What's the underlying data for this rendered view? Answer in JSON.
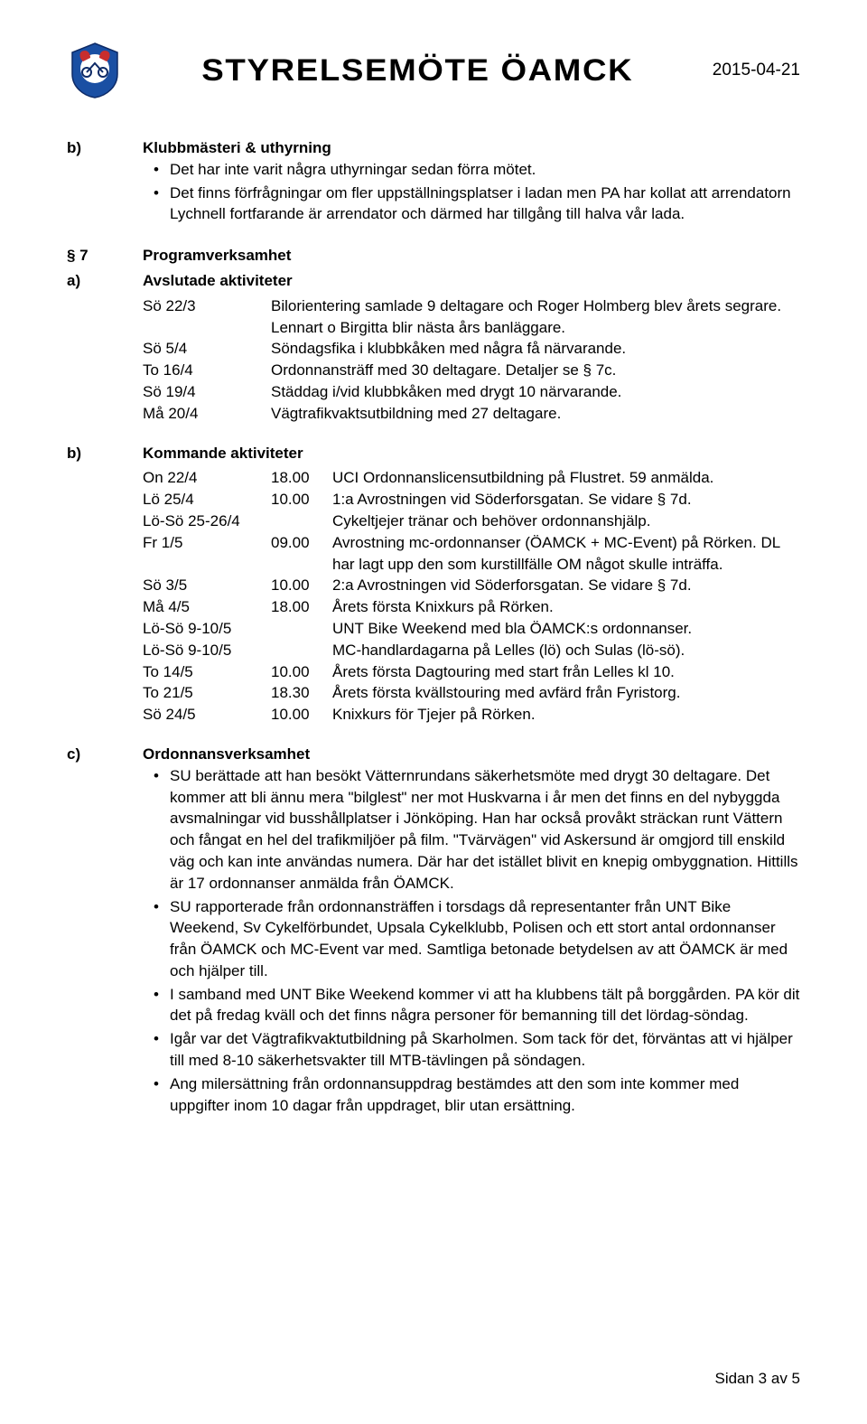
{
  "header": {
    "title": "STYRELSEMÖTE ÖAMCK",
    "date": "2015-04-21"
  },
  "colors": {
    "text": "#000000",
    "bg": "#ffffff",
    "logo_blue": "#1a4fa3",
    "logo_red": "#c82e2e",
    "logo_navy": "#0e2a66"
  },
  "section_b1": {
    "ref": "b)",
    "title": "Klubbmästeri & uthyrning",
    "bullets": [
      "Det har inte varit några uthyrningar sedan förra mötet.",
      "Det finns förfrågningar om fler uppställningsplatser i ladan men PA har kollat att arrendatorn Lychnell fortfarande är arrendator och därmed har tillgång till halva vår lada."
    ]
  },
  "section_7": {
    "ref": "§ 7",
    "title": "Programverksamhet"
  },
  "section_a": {
    "ref": "a)",
    "title": "Avslutade aktiviteter",
    "rows": [
      {
        "day": "Sö 22/3",
        "desc": "Bilorientering samlade 9 deltagare och Roger Holmberg blev årets segrare. Lennart o Birgitta blir nästa års banläggare."
      },
      {
        "day": "Sö 5/4",
        "desc": "Söndagsfika i klubbkåken med några få närvarande."
      },
      {
        "day": "To 16/4",
        "desc": "Ordonnansträff med 30 deltagare. Detaljer se § 7c."
      },
      {
        "day": "Sö 19/4",
        "desc": "Städdag i/vid klubbkåken med drygt 10 närvarande."
      },
      {
        "day": "Må 20/4",
        "desc": "Vägtrafikvaktsutbildning med 27 deltagare."
      }
    ]
  },
  "section_b2": {
    "ref": "b)",
    "title": "Kommande aktiviteter",
    "rows": [
      {
        "day": "On 22/4",
        "time": "18.00",
        "desc": "UCI Ordonnanslicensutbildning på Flustret. 59 anmälda."
      },
      {
        "day": "Lö 25/4",
        "time": "10.00",
        "desc": "1:a Avrostningen vid Söderforsgatan. Se vidare § 7d."
      },
      {
        "day": "Lö-Sö 25-26/4",
        "time": "",
        "desc": "Cykeltjejer tränar och behöver ordonnanshjälp."
      },
      {
        "day": "Fr 1/5",
        "time": "09.00",
        "desc": "Avrostning mc-ordonnanser (ÖAMCK + MC-Event) på Rörken. DL har lagt upp den som kurstillfälle OM något skulle inträffa."
      },
      {
        "day": "Sö 3/5",
        "time": "10.00",
        "desc": "2:a Avrostningen vid Söderforsgatan. Se vidare § 7d."
      },
      {
        "day": "Må 4/5",
        "time": "18.00",
        "desc": "Årets första Knixkurs på Rörken."
      },
      {
        "day": "Lö-Sö 9-10/5",
        "time": "",
        "desc": "UNT Bike Weekend med bla ÖAMCK:s ordonnanser."
      },
      {
        "day": "Lö-Sö 9-10/5",
        "time": "",
        "desc": "MC-handlardagarna på Lelles (lö) och Sulas (lö-sö)."
      },
      {
        "day": "To 14/5",
        "time": "10.00",
        "desc": "Årets första Dagtouring med start från Lelles kl 10."
      },
      {
        "day": "To 21/5",
        "time": "18.30",
        "desc": "Årets första kvällstouring med avfärd från Fyristorg."
      },
      {
        "day": "Sö 24/5",
        "time": "10.00",
        "desc": "Knixkurs för Tjejer på Rörken."
      }
    ]
  },
  "section_c": {
    "ref": "c)",
    "title": "Ordonnansverksamhet",
    "bullets": [
      "SU berättade att han besökt Vätternrundans säkerhetsmöte med drygt 30 deltagare. Det kommer att bli ännu mera \"bilglest\" ner mot Huskvarna i år men det finns en del nybyggda avsmalningar vid busshållplatser i Jönköping. Han har också provåkt sträckan runt Vättern och fångat en hel del trafikmiljöer på film. \"Tvärvägen\" vid Askersund är omgjord till enskild väg och kan inte användas numera. Där har det istället blivit en knepig ombyggnation. Hittills är 17 ordonnanser anmälda från ÖAMCK.",
      "SU rapporterade från ordonnansträffen i torsdags då representanter från UNT Bike Weekend, Sv Cykelförbundet, Upsala Cykelklubb, Polisen och ett stort antal ordonnanser från ÖAMCK och MC-Event var med. Samtliga betonade betydelsen av att ÖAMCK är med och hjälper till.",
      "I samband med UNT Bike Weekend kommer vi att ha klubbens tält på borggården. PA kör dit det på fredag kväll och det finns några personer för bemanning till det lördag-söndag.",
      "Igår var det Vägtrafikvaktutbildning på Skarholmen. Som tack för det, förväntas att vi hjälper till med 8-10 säkerhetsvakter till MTB-tävlingen på söndagen.",
      "Ang milersättning från ordonnansuppdrag bestämdes att den som inte kommer med uppgifter inom 10 dagar från uppdraget, blir utan ersättning."
    ]
  },
  "footer": {
    "text": "Sidan 3 av 5"
  }
}
